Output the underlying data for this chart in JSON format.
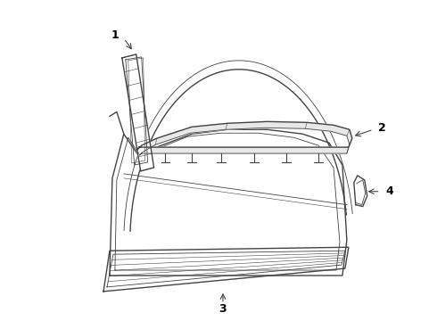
{
  "background_color": "#ffffff",
  "line_color": "#444444",
  "label_color": "#000000",
  "lw_main": 1.0,
  "lw_thin": 0.6,
  "lw_accent": 0.4
}
